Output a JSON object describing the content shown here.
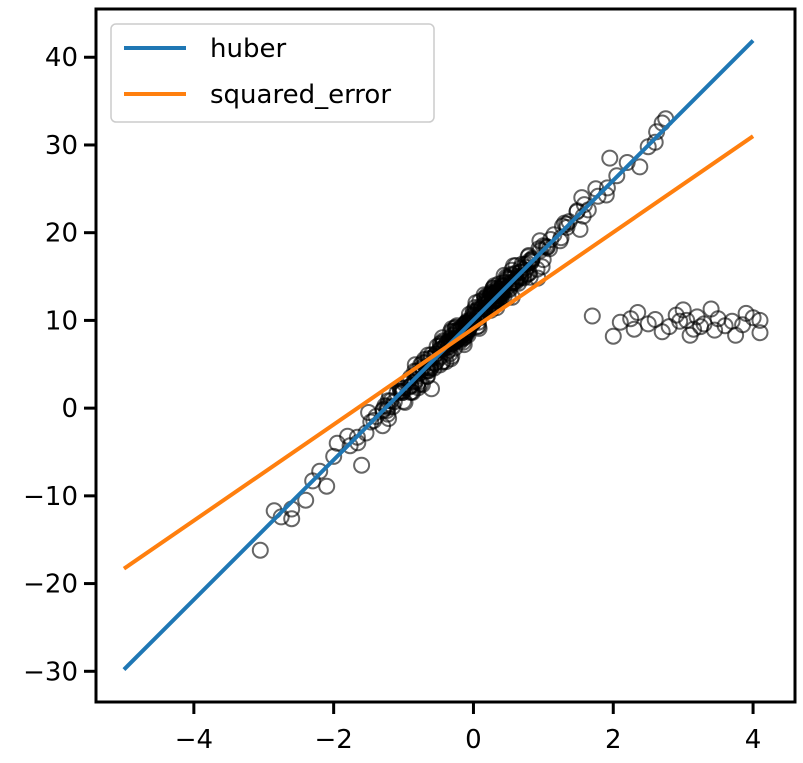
{
  "chart_data": {
    "type": "scatter",
    "title": "",
    "xlabel": "",
    "ylabel": "",
    "xlim": [
      -5.4,
      4.6
    ],
    "ylim": [
      -33.5,
      45.5
    ],
    "xticks": [
      -4,
      -2,
      0,
      2,
      4
    ],
    "yticks": [
      -30,
      -20,
      -10,
      0,
      10,
      20,
      30,
      40
    ],
    "xtick_labels": [
      "−4",
      "−2",
      "0",
      "2",
      "4"
    ],
    "ytick_labels": [
      "−30",
      "−20",
      "−10",
      "0",
      "10",
      "20",
      "30",
      "40"
    ],
    "grid": false,
    "legend": {
      "placement": "top-left",
      "entries": [
        "huber",
        "squared_error"
      ]
    },
    "series": [
      {
        "name": "huber",
        "kind": "line",
        "color": "#1f77b4",
        "x": [
          -5,
          4
        ],
        "y": [
          -29.8,
          41.9
        ]
      },
      {
        "name": "squared_error",
        "kind": "line",
        "color": "#ff7f0e",
        "x": [
          -5,
          4
        ],
        "y": [
          -18.3,
          31.0
        ]
      }
    ],
    "scatter": {
      "marker": "open-circle",
      "color": "#000000",
      "main_trend": {
        "x_range": [
          -3.0,
          2.8
        ],
        "slope": 8.0,
        "intercept": 10.0,
        "count": 360,
        "spread": 1.0
      },
      "points": [
        [
          -3.05,
          -16.2
        ],
        [
          -2.85,
          -11.7
        ],
        [
          -2.75,
          -12.4
        ],
        [
          -2.6,
          -12.6
        ],
        [
          -2.6,
          -11.5
        ],
        [
          -2.4,
          -10.5
        ],
        [
          -2.3,
          -8.3
        ],
        [
          -2.2,
          -7.2
        ],
        [
          -2.1,
          -8.9
        ],
        [
          -2.0,
          -5.5
        ],
        [
          -1.95,
          -4.0
        ],
        [
          -1.8,
          -3.2
        ],
        [
          -1.6,
          -6.5
        ],
        [
          -1.5,
          -0.5
        ],
        [
          -1.3,
          -2.0
        ],
        [
          -1.2,
          1.5
        ],
        [
          -0.9,
          3.5
        ],
        [
          -0.6,
          2.2
        ],
        [
          2.38,
          27.5
        ],
        [
          2.5,
          29.8
        ],
        [
          2.6,
          30.3
        ],
        [
          2.62,
          31.5
        ],
        [
          2.7,
          32.5
        ],
        [
          2.75,
          33.0
        ],
        [
          1.9,
          24.3
        ],
        [
          1.95,
          28.5
        ],
        [
          2.05,
          26.5
        ],
        [
          2.2,
          28.0
        ],
        [
          1.75,
          25.0
        ],
        [
          1.55,
          24.0
        ],
        [
          1.7,
          10.5
        ],
        [
          2.0,
          8.2
        ],
        [
          2.1,
          9.8
        ],
        [
          2.25,
          10.2
        ],
        [
          2.3,
          9.0
        ],
        [
          2.35,
          10.9
        ],
        [
          2.5,
          9.6
        ],
        [
          2.6,
          10.1
        ],
        [
          2.7,
          8.7
        ],
        [
          2.8,
          9.3
        ],
        [
          2.9,
          10.6
        ],
        [
          3.0,
          11.2
        ],
        [
          3.05,
          10.0
        ],
        [
          3.1,
          8.3
        ],
        [
          3.15,
          9.0
        ],
        [
          3.2,
          10.4
        ],
        [
          3.3,
          9.6
        ],
        [
          3.4,
          11.3
        ],
        [
          3.45,
          8.9
        ],
        [
          3.5,
          10.2
        ],
        [
          3.6,
          9.4
        ],
        [
          3.7,
          9.9
        ],
        [
          3.75,
          8.3
        ],
        [
          3.85,
          9.5
        ],
        [
          3.9,
          10.8
        ],
        [
          4.0,
          10.3
        ],
        [
          4.1,
          10.0
        ],
        [
          4.1,
          8.6
        ],
        [
          2.95,
          9.9
        ],
        [
          3.25,
          9.3
        ]
      ]
    }
  }
}
